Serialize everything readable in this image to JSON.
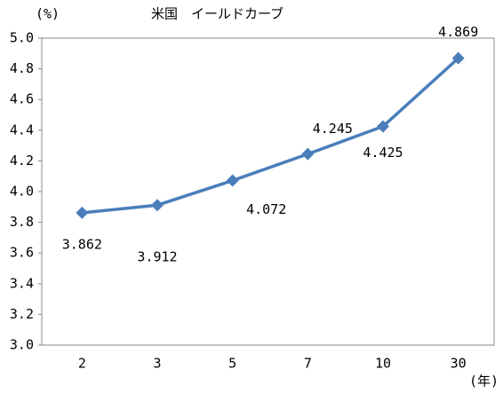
{
  "chart_data": {
    "type": "line",
    "title": "米国　イールドカーブ",
    "y_unit": "(%)",
    "x_unit": "(年)",
    "categories": [
      "2",
      "3",
      "5",
      "7",
      "10",
      "30"
    ],
    "series": [
      {
        "name": "米国",
        "color": "#4a7ebb",
        "values": [
          3.862,
          3.912,
          4.072,
          4.245,
          4.425,
          4.869
        ]
      }
    ],
    "ylim": [
      3.0,
      5.0
    ],
    "yticks": [
      {
        "value": 3,
        "label": "3.0"
      },
      3.2,
      3.4,
      3.6,
      3.8,
      {
        "value": 4,
        "label": "4.0"
      },
      4.2,
      4.4,
      4.6,
      4.8,
      {
        "value": 5,
        "label": "5.0"
      }
    ]
  }
}
